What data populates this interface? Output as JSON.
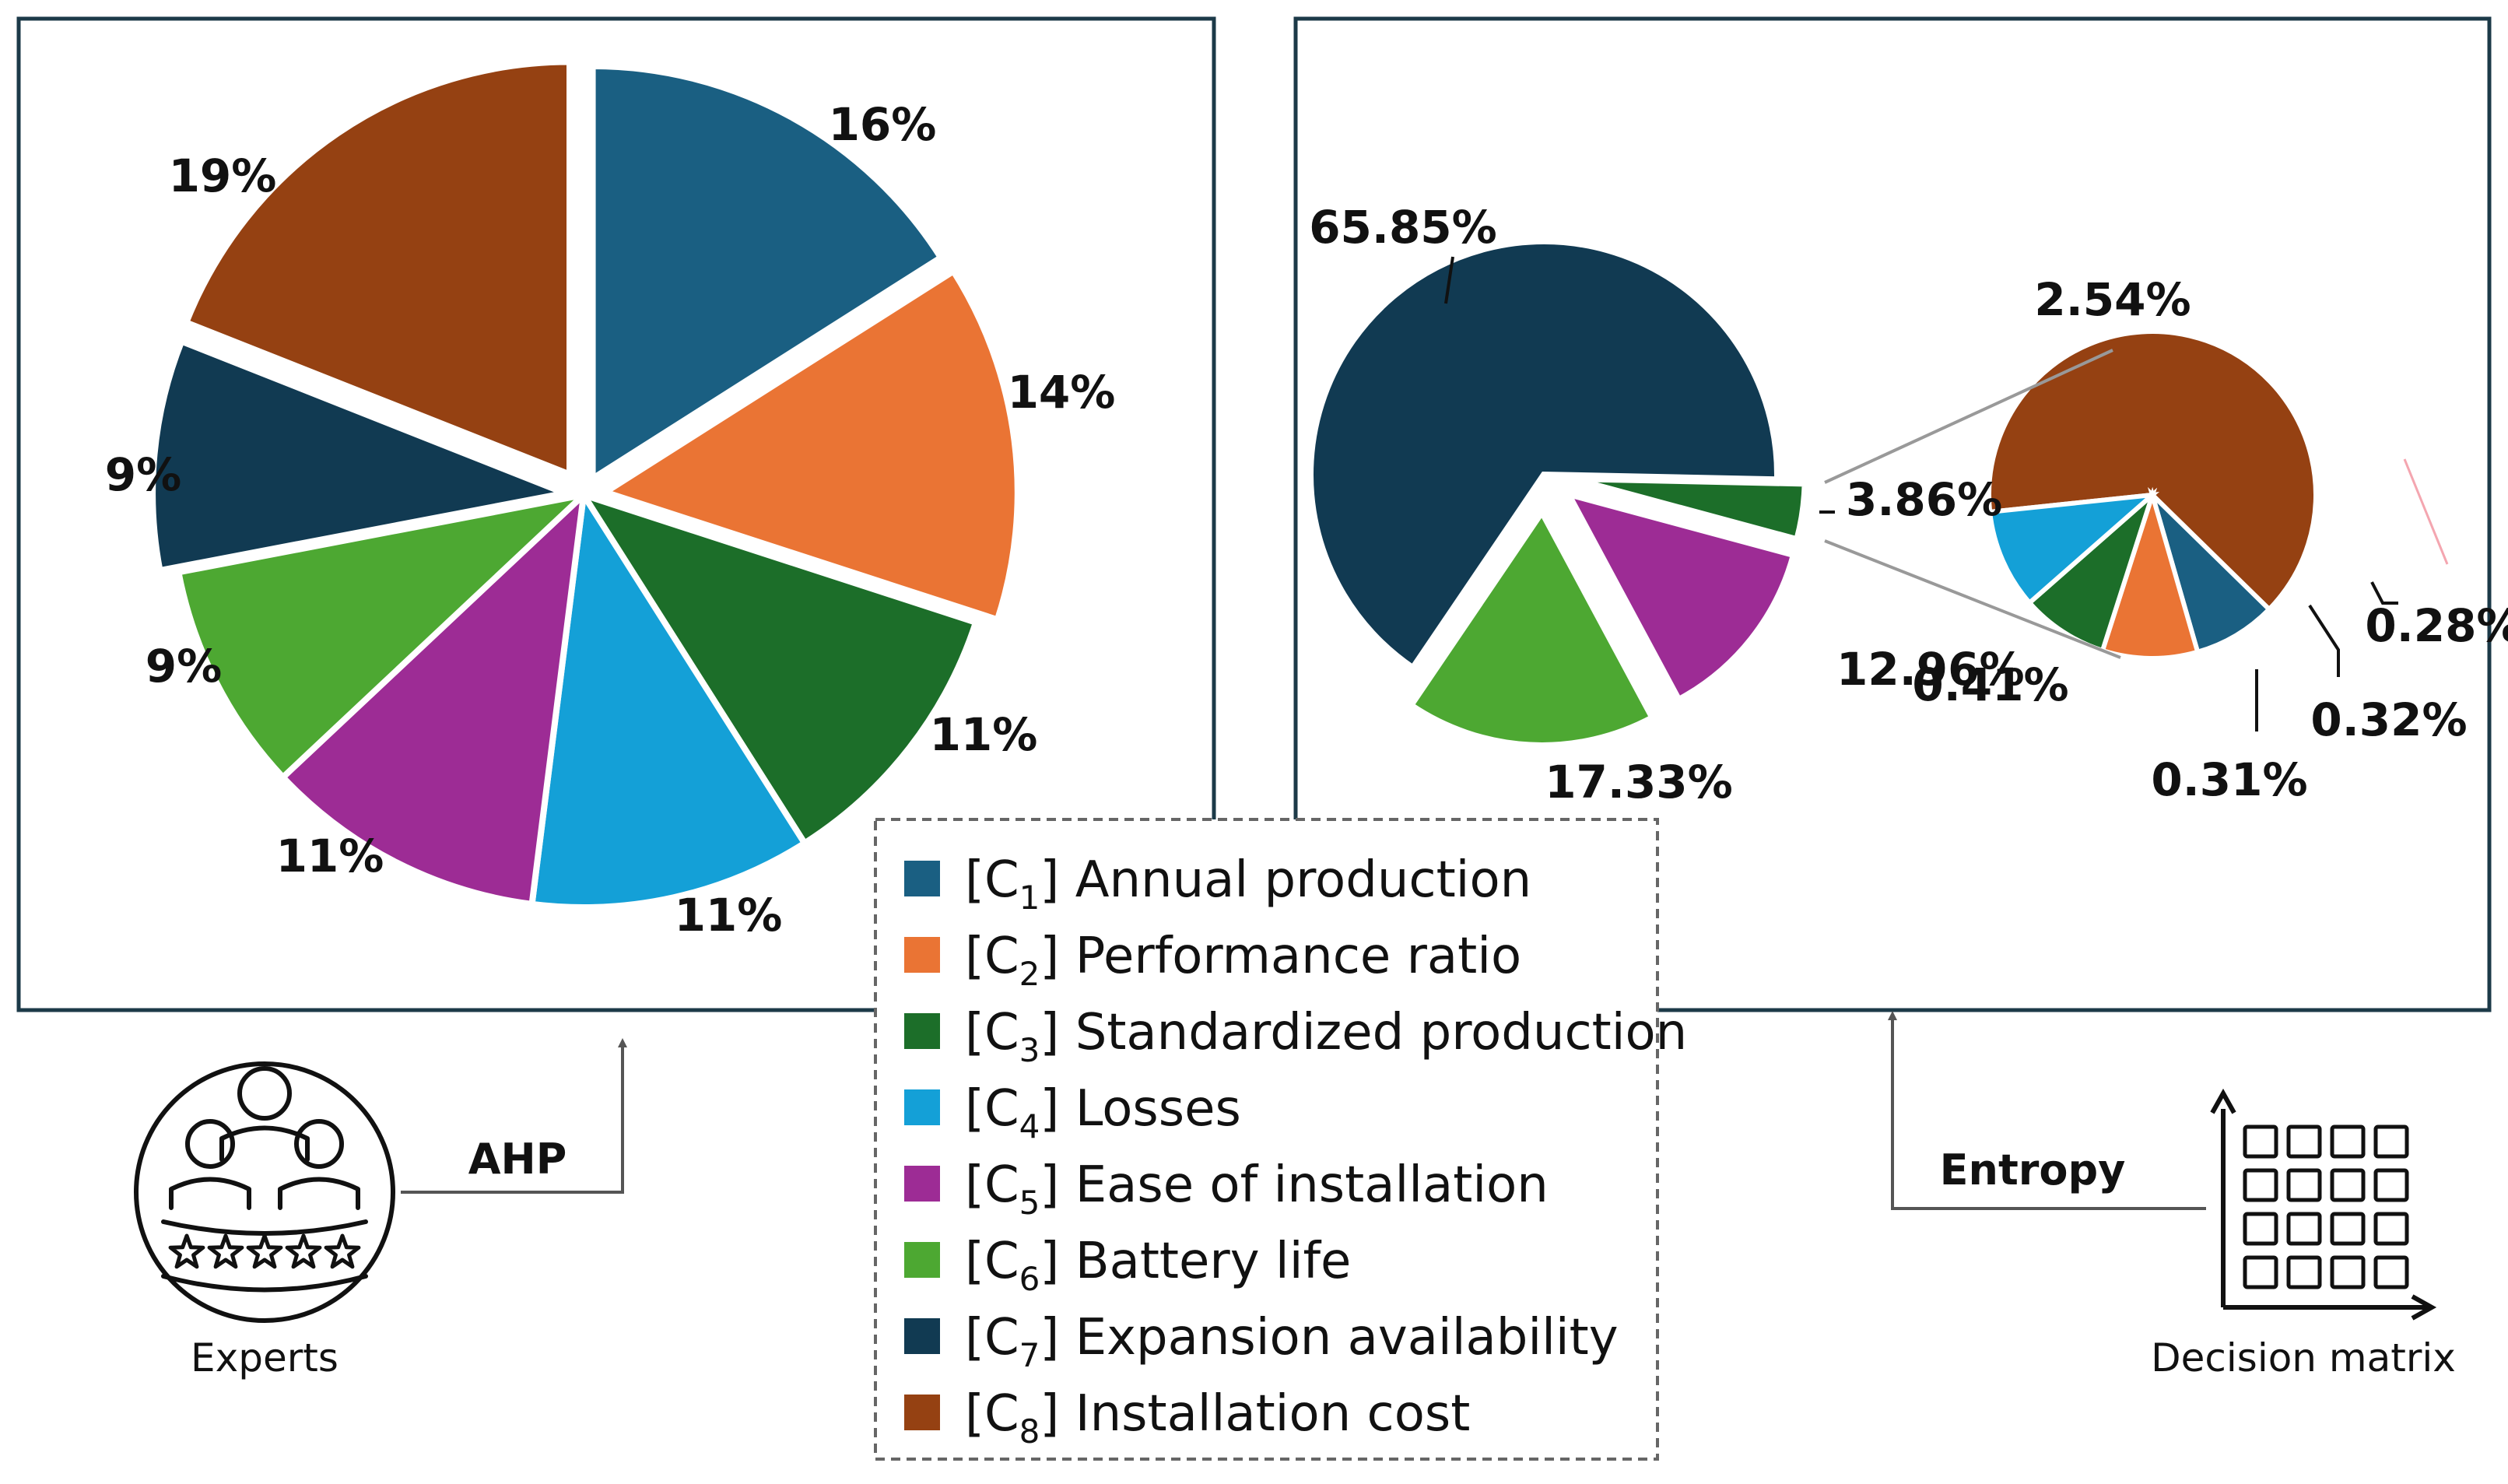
{
  "colors": {
    "C1": "#1a5f82",
    "C2": "#ea7434",
    "C3": "#1c6e29",
    "C4": "#14a0d7",
    "C5": "#9d2c95",
    "C6": "#4da832",
    "C7": "#113a52",
    "C8": "#954112",
    "frame": "#1c3a48"
  },
  "chart_data": [
    {
      "type": "pie",
      "method": "AHP",
      "title": "",
      "slices": [
        {
          "key": "C1",
          "value": 16,
          "label": "16%"
        },
        {
          "key": "C2",
          "value": 14,
          "label": "14%"
        },
        {
          "key": "C3",
          "value": 11,
          "label": "11%"
        },
        {
          "key": "C4",
          "value": 11,
          "label": "11%"
        },
        {
          "key": "C5",
          "value": 11,
          "label": "11%"
        },
        {
          "key": "C6",
          "value": 9,
          "label": "9%"
        },
        {
          "key": "C7",
          "value": 9,
          "label": "9%"
        },
        {
          "key": "C8",
          "value": 19,
          "label": "19%"
        }
      ]
    },
    {
      "type": "pie",
      "method": "Entropy",
      "title": "",
      "main_slices": [
        {
          "key": "C7",
          "value": 65.85,
          "label": "65.85%"
        },
        {
          "key": "C3",
          "value": 3.86,
          "label": "3.86%"
        },
        {
          "key": "C5",
          "value": 12.96,
          "label": "12.96%"
        },
        {
          "key": "C6",
          "value": 17.33,
          "label": "17.33%"
        }
      ],
      "sub_slices": [
        {
          "key": "C8",
          "value": 2.54,
          "label": "2.54%"
        },
        {
          "key": "C1",
          "value": 0.28,
          "label": "0.28%"
        },
        {
          "key": "C2",
          "value": 0.32,
          "label": "0.32%"
        },
        {
          "key": "C3",
          "value": 0.31,
          "label": "0.31%"
        },
        {
          "key": "C4",
          "value": 0.41,
          "label": "0.41%"
        }
      ]
    }
  ],
  "legend": [
    {
      "key": "C1",
      "code": "C",
      "sub": "1",
      "name": " Annual production"
    },
    {
      "key": "C2",
      "code": "C",
      "sub": "2",
      "name": "Performance ratio"
    },
    {
      "key": "C3",
      "code": "C",
      "sub": "3",
      "name": "Standardized production"
    },
    {
      "key": "C4",
      "code": "C",
      "sub": "4",
      "name": "Losses"
    },
    {
      "key": "C5",
      "code": "C",
      "sub": "5",
      "name": "Ease of installation"
    },
    {
      "key": "C6",
      "code": "C",
      "sub": "6",
      "name": "Battery life"
    },
    {
      "key": "C7",
      "code": "C",
      "sub": "7",
      "name": "Expansion availability"
    },
    {
      "key": "C8",
      "code": "C",
      "sub": "8",
      "name": "Installation cost"
    }
  ],
  "captions": {
    "experts": "Experts",
    "ahp": "AHP",
    "entropy": "Entropy",
    "decision_matrix": "Decision matrix"
  }
}
